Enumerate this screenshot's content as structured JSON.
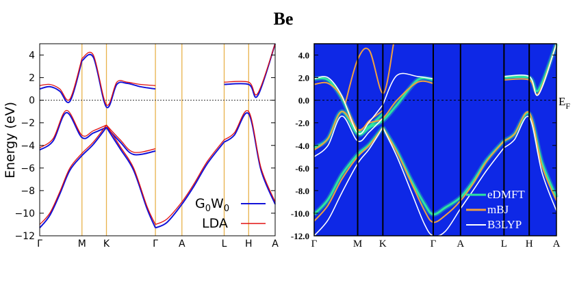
{
  "title": "Be",
  "colors": {
    "g0w0": "#1212d8",
    "lda": "#e01010",
    "bg_right": "#0e28e6",
    "edmft": "#2ee5a0",
    "mbj": "#f0a040",
    "b3lyp": "#ffffff",
    "kline": "#e8b24a"
  },
  "chart_data": [
    {
      "type": "line",
      "panel": "left",
      "ylabel": "Energy (eV)",
      "ylim": [
        -12,
        5
      ],
      "yticks": [
        4,
        2,
        0,
        -2,
        -4,
        -6,
        -8,
        -10,
        -12
      ],
      "ytick_labels": [
        "4",
        "2",
        "0",
        "−2",
        "−4",
        "−6",
        "−8",
        "−10",
        "−12"
      ],
      "kpath_labels": [
        "Γ",
        "M",
        "K",
        "Γ",
        "A",
        "L",
        "H",
        "A"
      ],
      "kpath_positions": [
        0,
        1.26,
        1.99,
        3.45,
        4.24,
        5.5,
        6.23,
        7.02
      ],
      "fermi_level": 0,
      "legend": [
        "G₀W₀",
        "LDA"
      ],
      "legend_main": [
        "G",
        "LDA"
      ],
      "legend_sub": [
        "0",
        "0"
      ],
      "legend_w": "W",
      "series": [
        {
          "name": "G0W0",
          "bands": [
            {
              "x": [
                0,
                0.3,
                0.6,
                0.9,
                1.26,
                1.6,
                1.99
              ],
              "y": [
                -11.3,
                -10.2,
                -8.3,
                -6.2,
                -4.9,
                -3.9,
                -2.4
              ]
            },
            {
              "x": [
                1.99,
                2.4,
                2.8,
                3.2,
                3.45
              ],
              "y": [
                -2.4,
                -4.3,
                -6.2,
                -9.6,
                -11.3
              ]
            },
            {
              "x": [
                3.45,
                3.8,
                4.24,
                4.6,
                5.0,
                5.5
              ],
              "y": [
                -11.3,
                -10.8,
                -9.2,
                -7.6,
                -5.6,
                -3.7
              ]
            },
            {
              "x": [
                5.5,
                5.8,
                6.23,
                6.6,
                7.02
              ],
              "y": [
                -3.7,
                -3.1,
                -1.2,
                -6.2,
                -9.2
              ]
            },
            {
              "x": [
                0,
                0.4,
                0.8,
                1.26,
                1.6,
                1.99
              ],
              "y": [
                -4.4,
                -3.6,
                -1.1,
                -3.3,
                -2.9,
                -2.4
              ]
            },
            {
              "x": [
                1.99,
                2.4,
                2.8,
                3.45
              ],
              "y": [
                -2.4,
                -3.7,
                -4.8,
                -4.5
              ]
            },
            {
              "x": [
                0,
                0.3,
                0.6,
                0.9,
                1.26
              ],
              "y": [
                1.0,
                1.2,
                0.8,
                -0.1,
                3.5
              ]
            },
            {
              "x": [
                1.26,
                1.6,
                1.99,
                2.3,
                2.6,
                3.0,
                3.45
              ],
              "y": [
                3.5,
                3.8,
                -0.6,
                1.4,
                1.5,
                1.2,
                1.0
              ]
            },
            {
              "x": [
                5.5,
                6.23,
                6.5,
                7.02
              ],
              "y": [
                1.4,
                1.4,
                0.4,
                5.0
              ]
            }
          ]
        },
        {
          "name": "LDA",
          "bands": [
            {
              "x": [
                0,
                0.3,
                0.6,
                0.9,
                1.26,
                1.6,
                1.99
              ],
              "y": [
                -11.0,
                -10.0,
                -8.1,
                -6.0,
                -4.7,
                -3.7,
                -2.2
              ]
            },
            {
              "x": [
                1.99,
                2.4,
                2.8,
                3.2,
                3.45
              ],
              "y": [
                -2.2,
                -4.1,
                -6.0,
                -9.4,
                -11.0
              ]
            },
            {
              "x": [
                3.45,
                3.8,
                4.24,
                4.6,
                5.0,
                5.5
              ],
              "y": [
                -11.0,
                -10.5,
                -9.0,
                -7.4,
                -5.4,
                -3.5
              ]
            },
            {
              "x": [
                5.5,
                5.8,
                6.23,
                6.6,
                7.02
              ],
              "y": [
                -3.5,
                -2.9,
                -1.0,
                -6.0,
                -9.0
              ]
            },
            {
              "x": [
                0,
                0.4,
                0.8,
                1.26,
                1.6,
                1.99
              ],
              "y": [
                -4.2,
                -3.4,
                -0.9,
                -3.1,
                -2.7,
                -2.2
              ]
            },
            {
              "x": [
                1.99,
                2.4,
                2.8,
                3.45
              ],
              "y": [
                -2.2,
                -3.5,
                -4.6,
                -4.3
              ]
            },
            {
              "x": [
                0,
                0.3,
                0.6,
                0.9,
                1.26
              ],
              "y": [
                1.3,
                1.4,
                1.0,
                0.1,
                3.7
              ]
            },
            {
              "x": [
                1.26,
                1.6,
                1.99,
                2.3,
                2.6,
                3.0,
                3.45
              ],
              "y": [
                3.7,
                4.0,
                -0.4,
                1.6,
                1.6,
                1.4,
                1.3
              ]
            },
            {
              "x": [
                5.5,
                6.23,
                6.5,
                7.02
              ],
              "y": [
                1.6,
                1.6,
                0.6,
                5.0
              ]
            }
          ]
        }
      ]
    },
    {
      "type": "line",
      "panel": "right",
      "ylim": [
        -12.0,
        5.0
      ],
      "yticks": [
        4.0,
        2.0,
        0.0,
        -2.0,
        -4.0,
        -6.0,
        -8.0,
        -10.0,
        -12.0
      ],
      "ytick_labels": [
        "4.0",
        "2.0",
        "0.0",
        "-2.0",
        "-4.0",
        "-6.0",
        "-8.0",
        "-10.0",
        "-12.0"
      ],
      "kpath_labels": [
        "Γ",
        "M",
        "K",
        "Γ",
        "A",
        "L",
        "H",
        "A"
      ],
      "kpath_positions": [
        0,
        1.26,
        1.99,
        3.45,
        4.24,
        5.5,
        6.23,
        7.02
      ],
      "fermi_label": "E",
      "fermi_sub": "F",
      "legend": [
        "eDMFT",
        "mBJ",
        "B3LYP"
      ],
      "series": [
        {
          "name": "eDMFT",
          "bands": [
            {
              "x": [
                0,
                0.4,
                0.8,
                1.26,
                1.6,
                1.99
              ],
              "y": [
                -10.1,
                -8.8,
                -6.6,
                -4.8,
                -3.9,
                -2.4
              ]
            },
            {
              "x": [
                1.99,
                2.4,
                2.8,
                3.2,
                3.45,
                3.8,
                4.24,
                4.6,
                5.0,
                5.5
              ],
              "y": [
                -2.4,
                -4.5,
                -7.0,
                -9.2,
                -10.1,
                -9.5,
                -8.6,
                -7.2,
                -5.3,
                -3.6
              ]
            },
            {
              "x": [
                5.5,
                5.8,
                6.23,
                6.6,
                7.02
              ],
              "y": [
                -3.6,
                -3.0,
                -1.2,
                -5.5,
                -8.6
              ]
            },
            {
              "x": [
                0,
                0.4,
                0.8,
                1.26,
                1.6,
                1.99
              ],
              "y": [
                1.9,
                1.8,
                0.2,
                -2.7,
                -2.3,
                -1.2
              ]
            },
            {
              "x": [
                0,
                0.4,
                0.8,
                1.26,
                1.6,
                1.99,
                2.4,
                3.0,
                3.45
              ],
              "y": [
                -4.2,
                -3.4,
                -1.0,
                -3.0,
                -2.4,
                -1.8,
                -0.4,
                1.8,
                1.8
              ]
            },
            {
              "x": [
                5.5,
                6.23,
                6.5,
                7.02
              ],
              "y": [
                2.0,
                2.0,
                0.9,
                5.0
              ]
            }
          ]
        },
        {
          "name": "mBJ",
          "bands": [
            {
              "x": [
                0,
                0.4,
                0.8,
                1.26,
                1.6,
                1.99
              ],
              "y": [
                -10.7,
                -9.3,
                -7.0,
                -5.0,
                -4.0,
                -2.4
              ]
            },
            {
              "x": [
                1.99,
                2.4,
                2.8,
                3.2,
                3.45,
                3.8,
                4.24,
                4.6,
                5.0,
                5.5
              ],
              "y": [
                -2.4,
                -4.6,
                -7.2,
                -9.8,
                -10.8,
                -10.2,
                -8.9,
                -7.4,
                -5.4,
                -3.6
              ]
            },
            {
              "x": [
                5.5,
                5.8,
                6.23,
                6.6,
                7.02
              ],
              "y": [
                -3.6,
                -3.0,
                -1.1,
                -5.8,
                -8.9
              ]
            },
            {
              "x": [
                0,
                0.4,
                0.8,
                1.26,
                1.6,
                1.99
              ],
              "y": [
                1.4,
                1.5,
                0.3,
                -2.6,
                -1.8,
                -0.9
              ]
            },
            {
              "x": [
                0,
                0.4,
                0.8,
                1.26,
                1.6,
                1.99,
                2.4,
                3.0,
                3.45
              ],
              "y": [
                -4.4,
                -3.4,
                -1.0,
                -2.6,
                -2.0,
                -1.6,
                0.0,
                1.6,
                1.5
              ]
            },
            {
              "x": [
                0.9,
                1.26,
                1.6,
                2.0,
                2.3
              ],
              "y": [
                -0.3,
                3.6,
                4.4,
                0.6,
                5.0
              ]
            },
            {
              "x": [
                5.5,
                6.23,
                6.5,
                7.02
              ],
              "y": [
                1.8,
                1.8,
                0.6,
                5.0
              ]
            }
          ]
        },
        {
          "name": "B3LYP",
          "bands": [
            {
              "x": [
                0,
                0.4,
                0.8,
                1.26,
                1.6,
                1.99
              ],
              "y": [
                -12.0,
                -10.6,
                -8.2,
                -5.6,
                -4.3,
                -2.4
              ]
            },
            {
              "x": [
                1.99,
                2.4,
                2.8,
                3.2,
                3.45,
                3.8,
                4.24,
                4.6,
                5.0,
                5.5
              ],
              "y": [
                -2.4,
                -5.0,
                -8.0,
                -11.0,
                -12.0,
                -11.6,
                -9.6,
                -8.0,
                -6.2,
                -4.2
              ]
            },
            {
              "x": [
                5.5,
                5.8,
                6.23,
                6.6,
                7.02
              ],
              "y": [
                -4.2,
                -3.5,
                -1.5,
                -6.4,
                -9.8
              ]
            },
            {
              "x": [
                0,
                0.4,
                0.8,
                1.26,
                1.6,
                1.99
              ],
              "y": [
                -5.0,
                -4.0,
                -1.4,
                -3.6,
                -2.8,
                -1.6
              ]
            },
            {
              "x": [
                0,
                0.4,
                0.8,
                1.26,
                1.6,
                1.99
              ],
              "y": [
                1.9,
                2.0,
                0.4,
                -2.9,
                -1.9,
                -0.4
              ]
            },
            {
              "x": [
                1.99,
                2.4,
                3.0,
                3.45
              ],
              "y": [
                -0.4,
                2.2,
                2.1,
                1.9
              ]
            },
            {
              "x": [
                5.5,
                6.23,
                6.5,
                7.02
              ],
              "y": [
                2.1,
                2.1,
                0.5,
                5.0
              ]
            }
          ]
        }
      ]
    }
  ]
}
